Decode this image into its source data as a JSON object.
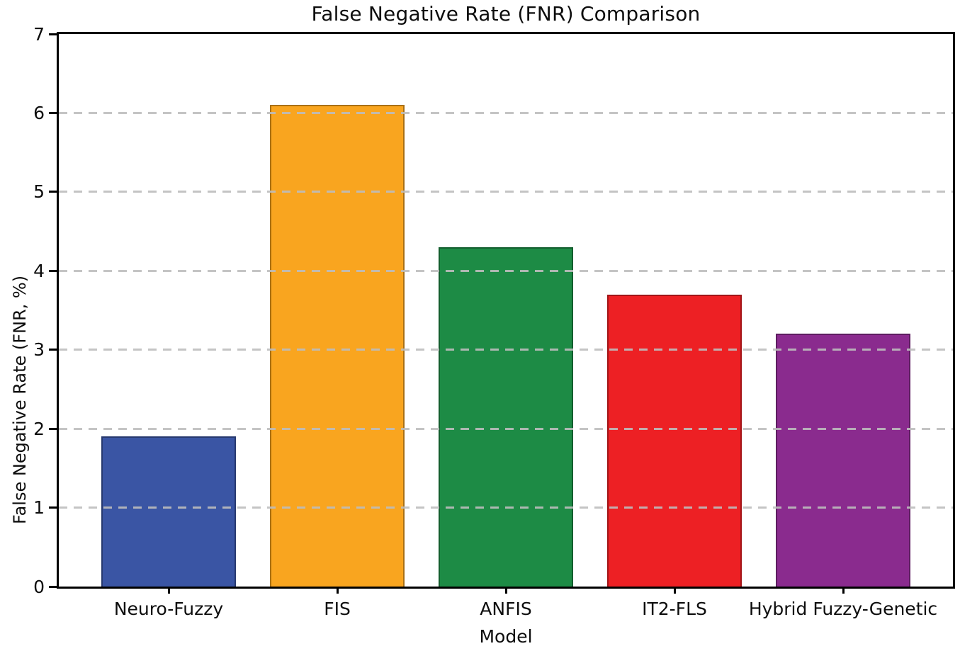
{
  "chart_data": {
    "type": "bar",
    "title": "False Negative Rate (FNR) Comparison",
    "xlabel": "Model",
    "ylabel": "False Negative Rate (FNR, %)",
    "categories": [
      "Neuro-Fuzzy",
      "FIS",
      "ANFIS",
      "IT2-FLS",
      "Hybrid Fuzzy-Genetic"
    ],
    "values": [
      1.9,
      6.1,
      4.3,
      3.7,
      3.2
    ],
    "bar_colors": [
      "#3a55a4",
      "#f9a51f",
      "#1d8b45",
      "#ed2024",
      "#8a2b8e"
    ],
    "bar_edge_color": "rgba(0,0,0,0.32)",
    "ylim": [
      0,
      7
    ],
    "yticks": [
      0,
      1,
      2,
      3,
      4,
      5,
      6,
      7
    ],
    "grid": {
      "axis": "y",
      "style": "dashed",
      "color": "#bdbdbd",
      "above_bars": true
    },
    "legend": "none",
    "background_color": "#ffffff",
    "spine_color": "#000000"
  }
}
